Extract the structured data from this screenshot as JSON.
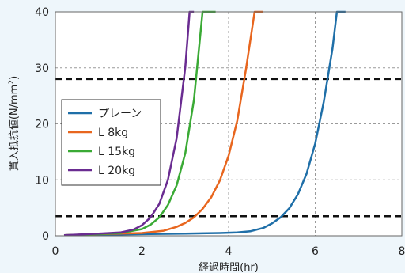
{
  "chart_data": {
    "type": "line",
    "xlabel": "経過時間(hr)",
    "ylabel_main": "貫入抵抗値(N/mm",
    "ylabel_sup": "2",
    "ylabel_close": ")",
    "xlim": [
      0,
      8
    ],
    "ylim": [
      0,
      40
    ],
    "xticks": [
      "0",
      "2",
      "4",
      "6",
      "8"
    ],
    "yticks": [
      "0",
      "10",
      "20",
      "30",
      "40"
    ],
    "grid": true,
    "legend_position": "left-middle",
    "series": [
      {
        "name": "プレーン",
        "color": "#1f6fa8",
        "x": [
          0.2,
          1.0,
          2.0,
          3.0,
          3.8,
          4.2,
          4.5,
          4.8,
          5.0,
          5.2,
          5.4,
          5.6,
          5.8,
          6.0,
          6.2,
          6.4,
          6.5,
          6.6,
          6.7
        ],
        "y": [
          0.1,
          0.2,
          0.3,
          0.4,
          0.5,
          0.6,
          0.8,
          1.4,
          2.2,
          3.3,
          4.9,
          7.4,
          11.1,
          16.5,
          24.0,
          33.5,
          40,
          40,
          40
        ]
      },
      {
        "name": "L 8kg",
        "color": "#e8661e",
        "x": [
          0.2,
          1.0,
          2.0,
          2.5,
          2.8,
          3.0,
          3.2,
          3.4,
          3.6,
          3.8,
          4.0,
          4.2,
          4.4,
          4.6,
          4.8
        ],
        "y": [
          0.1,
          0.3,
          0.5,
          0.9,
          1.6,
          2.3,
          3.3,
          4.8,
          6.9,
          9.9,
          14.3,
          20.6,
          29.7,
          40,
          40
        ]
      },
      {
        "name": "L 15kg",
        "color": "#3aaa35",
        "x": [
          0.2,
          1.0,
          1.5,
          2.0,
          2.2,
          2.4,
          2.6,
          2.8,
          3.0,
          3.2,
          3.4,
          3.6,
          3.7
        ],
        "y": [
          0.1,
          0.3,
          0.5,
          1.2,
          2.0,
          3.3,
          5.5,
          9.0,
          14.8,
          24.3,
          40,
          40,
          40
        ]
      },
      {
        "name": "L 20kg",
        "color": "#6a2c91",
        "x": [
          0.2,
          1.0,
          1.5,
          1.8,
          2.0,
          2.2,
          2.4,
          2.6,
          2.8,
          3.0,
          3.1,
          3.2
        ],
        "y": [
          0.1,
          0.4,
          0.6,
          1.1,
          1.9,
          3.3,
          5.7,
          10.0,
          17.4,
          30.2,
          40,
          40
        ]
      }
    ],
    "reference_lines": [
      {
        "y": 28
      },
      {
        "y": 3.5
      }
    ]
  }
}
